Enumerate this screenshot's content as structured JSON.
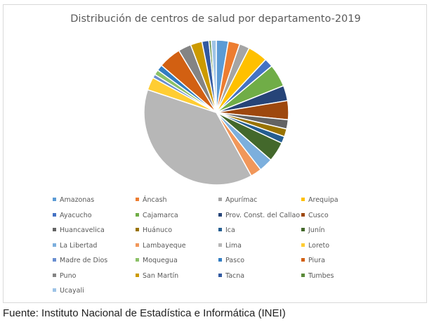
{
  "chart_data": {
    "type": "pie",
    "title": "Distribución de centros de salud por departamento-2019",
    "start_angle_deg": 0,
    "direction": "clockwise",
    "legend_position": "bottom",
    "categories": [
      "Amazonas",
      "Áncash",
      "Apurímac",
      "Arequipa",
      "Ayacucho",
      "Cajamarca",
      "Prov. Const. del Callao",
      "Cusco",
      "Huancavelica",
      "Huánuco",
      "Ica",
      "Junín",
      "La Libertad",
      "Lambayeque",
      "Lima",
      "Loreto",
      "Madre de Dios",
      "Moquegua",
      "Pasco",
      "Piura",
      "Puno",
      "San Martín",
      "Tacna",
      "Tumbes",
      "Ucayali"
    ],
    "values": [
      2.6,
      2.5,
      2.2,
      4.3,
      1.9,
      4.9,
      3.3,
      4.1,
      2.0,
      1.7,
      1.5,
      4.3,
      3.0,
      2.4,
      37.0,
      2.8,
      0.8,
      1.1,
      1.3,
      4.9,
      2.8,
      2.5,
      1.5,
      0.5,
      1.1
    ],
    "colors": [
      "#5b9bd5",
      "#ed7d31",
      "#a5a5a5",
      "#ffc000",
      "#4472c4",
      "#70ad47",
      "#264478",
      "#9e480e",
      "#636363",
      "#997300",
      "#255e91",
      "#43682b",
      "#7cafdd",
      "#f1975a",
      "#b7b7b7",
      "#ffcd33",
      "#698ed0",
      "#8cc168",
      "#327dc2",
      "#d26012",
      "#848484",
      "#cc9a00",
      "#335aa1",
      "#5a8a39",
      "#9dc3e6"
    ]
  },
  "source_note": "Fuente: Instituto Nacional de Estadística e Informática (INEI)"
}
